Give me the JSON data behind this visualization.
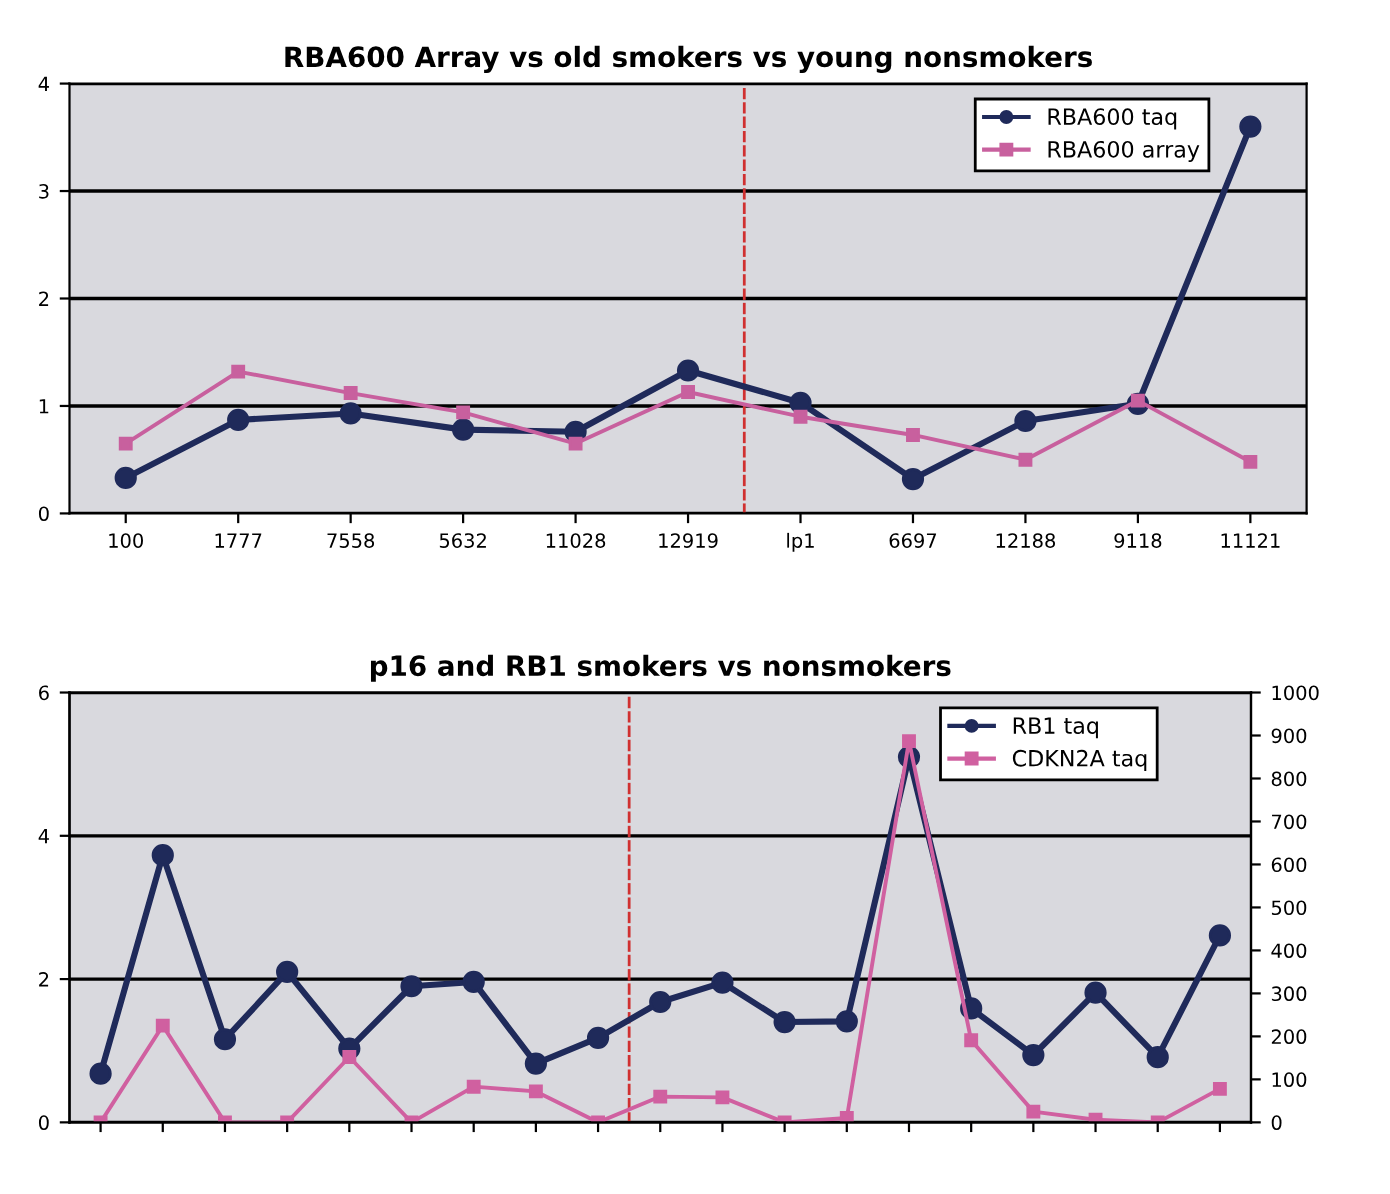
{
  "chart_data": [
    {
      "type": "line",
      "title": "RBA600 Array vs old smokers vs young nonsmokers",
      "categories": [
        "100",
        "1777",
        "7558",
        "5632",
        "11028",
        "12919",
        "lp1",
        "6697",
        "12188",
        "9118",
        "11121"
      ],
      "series": [
        {
          "name": "RBA600 taq",
          "color": "#1f2a5a",
          "marker": "circle",
          "values": [
            0.33,
            0.87,
            0.93,
            0.78,
            0.76,
            1.33,
            1.03,
            0.32,
            0.86,
            1.02,
            3.6
          ]
        },
        {
          "name": "RBA600 array",
          "color": "#c8609e",
          "marker": "square",
          "values": [
            0.65,
            1.32,
            1.12,
            0.94,
            0.65,
            1.13,
            0.9,
            0.73,
            0.5,
            1.05,
            0.48
          ]
        }
      ],
      "ylim": [
        0,
        4
      ],
      "yticks": [
        0,
        1,
        2,
        3,
        4
      ],
      "grid": "y",
      "legend": "top right"
    },
    {
      "type": "line",
      "title": "p16 and RB1 smokers vs nonsmokers",
      "categories": [
        null,
        null,
        null,
        null,
        null,
        null,
        null,
        null,
        null,
        null,
        null,
        null,
        null,
        null,
        null,
        null,
        null,
        null,
        null
      ],
      "series": [
        {
          "name": "RB1 taq",
          "color": "#1f2a5a",
          "marker": "circle",
          "values": [
            0.68,
            3.73,
            1.16,
            2.1,
            1.03,
            1.9,
            1.96,
            0.82,
            1.18,
            1.68,
            1.95,
            1.4,
            1.41,
            5.1,
            1.59,
            0.94,
            1.81,
            0.91,
            2.61
          ]
        },
        {
          "name": "CDKN2A taq",
          "color": "#d060a0",
          "marker": "square",
          "axis": "y2",
          "values": [
            0,
            225,
            0,
            0,
            152,
            0,
            83,
            72,
            0,
            60,
            58,
            0,
            10,
            887,
            191,
            25,
            6,
            0,
            78
          ]
        }
      ],
      "ylim": [
        0,
        6
      ],
      "yticks": [
        0,
        2,
        4,
        6
      ],
      "y2lim": [
        0,
        1000
      ],
      "y2ticks": [
        0,
        100,
        200,
        300,
        400,
        500,
        600,
        700,
        800,
        900,
        1000
      ],
      "grid": "y",
      "legend": "top right"
    }
  ]
}
